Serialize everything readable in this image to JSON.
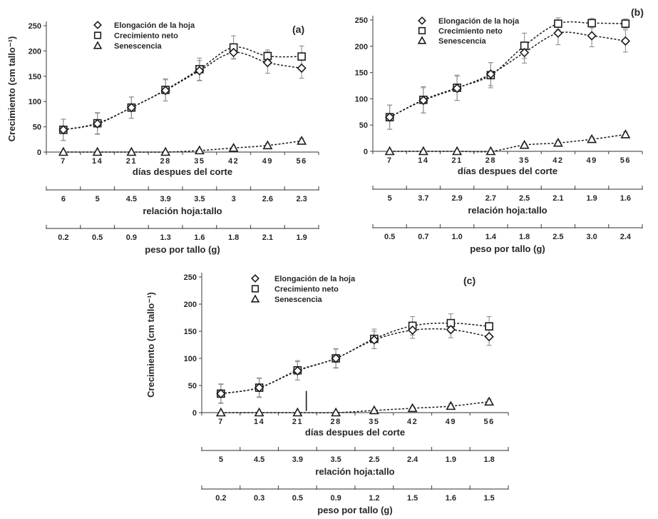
{
  "figure": {
    "background": "#ffffff",
    "ink_color": "#1c1c1c",
    "axis_color": "#595959",
    "error_bar_color": "#8f8f8f",
    "legend": {
      "items": [
        {
          "label": "Elongación de la hoja",
          "marker": "diamond-icon"
        },
        {
          "label": "Crecimiento neto",
          "marker": "square-icon"
        },
        {
          "label": "Senescencia",
          "marker": "triangle-icon"
        }
      ]
    }
  },
  "chart_data": [
    {
      "type": "scatter",
      "panel_label": "(a)",
      "title": "",
      "ylabel": "Crecimiento (cm tallo⁻¹)",
      "show_ylabel": true,
      "xlabel": "días despues del corte",
      "ylim": [
        0,
        250
      ],
      "yticks": [
        0,
        50,
        100,
        150,
        200,
        250
      ],
      "grid": false,
      "legend_position": "top-inside-left",
      "x": [
        7,
        14,
        21,
        28,
        35,
        42,
        49,
        56
      ],
      "series": [
        {
          "name": "Elongación de la hoja",
          "marker": "diamond",
          "values": [
            44,
            56,
            88,
            122,
            161,
            197,
            177,
            166
          ],
          "errors": [
            21,
            21,
            21,
            21,
            20,
            12,
            21,
            20
          ]
        },
        {
          "name": "Crecimiento neto",
          "marker": "square",
          "values": [
            44,
            57,
            88,
            123,
            164,
            207,
            190,
            189
          ],
          "errors": [
            21,
            21,
            21,
            22,
            22,
            23,
            12,
            21
          ]
        },
        {
          "name": "Senescencia",
          "marker": "triangle",
          "values": [
            0,
            0,
            0,
            0,
            3,
            8,
            13,
            22
          ],
          "errors": [
            2,
            2,
            2,
            2,
            3,
            3,
            4,
            5
          ]
        }
      ],
      "sub_axes": [
        {
          "title": "relación hoja:tallo",
          "values": [
            "6",
            "5",
            "4.5",
            "3.9",
            "3.5",
            "3",
            "2.6",
            "2.3"
          ]
        },
        {
          "title": "peso por tallo (g)",
          "values": [
            "0.2",
            "0.5",
            "0.9",
            "1.3",
            "1.6",
            "1.8",
            "2.1",
            "1.9"
          ]
        }
      ]
    },
    {
      "type": "scatter",
      "panel_label": "(b)",
      "title": "",
      "ylabel": "Crecimiento (cm tallo⁻¹)",
      "show_ylabel": false,
      "xlabel": "días despues del corte",
      "ylim": [
        0,
        250
      ],
      "yticks": [
        0,
        50,
        100,
        150,
        200,
        250
      ],
      "grid": false,
      "legend_position": "top-inside-left",
      "x": [
        7,
        14,
        21,
        28,
        35,
        42,
        49,
        56
      ],
      "series": [
        {
          "name": "Elongación de la hoja",
          "marker": "diamond",
          "values": [
            65,
            97,
            120,
            147,
            188,
            225,
            220,
            210
          ],
          "errors": [
            23,
            24,
            23,
            22,
            20,
            22,
            21,
            21
          ]
        },
        {
          "name": "Crecimiento neto",
          "marker": "square",
          "values": [
            65,
            98,
            121,
            145,
            201,
            243,
            244,
            243
          ],
          "errors": [
            23,
            25,
            24,
            24,
            24,
            11,
            9,
            9
          ]
        },
        {
          "name": "Senescencia",
          "marker": "triangle",
          "values": [
            0,
            0,
            0,
            0,
            12,
            16,
            23,
            32
          ],
          "errors": [
            2,
            2,
            2,
            2,
            3,
            4,
            4,
            5
          ]
        }
      ],
      "sub_axes": [
        {
          "title": "relación hoja:tallo",
          "values": [
            "5",
            "3.7",
            "2.9",
            "2.7",
            "2.5",
            "2.1",
            "1.9",
            "1.6"
          ]
        },
        {
          "title": "peso por tallo (g)",
          "values": [
            "0.5",
            "0.7",
            "1.0",
            "1.4",
            "1.8",
            "2.5",
            "3.0",
            "2.4"
          ]
        }
      ]
    },
    {
      "type": "scatter",
      "panel_label": "(c)",
      "title": "",
      "ylabel": "Crecimiento (cm tallo⁻¹)",
      "show_ylabel": true,
      "xlabel": "días despues del corte",
      "ylim": [
        0,
        250
      ],
      "yticks": [
        0,
        50,
        100,
        150,
        200,
        250
      ],
      "grid": false,
      "legend_position": "top-inside-left",
      "x": [
        7,
        14,
        21,
        28,
        35,
        42,
        49,
        56
      ],
      "artifact_line": {
        "day": 22.6,
        "from_value": 3,
        "to_value": 40
      },
      "series": [
        {
          "name": "Elongación de la hoja",
          "marker": "diamond",
          "values": [
            35,
            46,
            77,
            100,
            134,
            152,
            153,
            140
          ],
          "errors": [
            17,
            17,
            17,
            17,
            16,
            15,
            15,
            16
          ]
        },
        {
          "name": "Crecimiento neto",
          "marker": "square",
          "values": [
            35,
            46,
            78,
            100,
            136,
            160,
            165,
            159
          ],
          "errors": [
            18,
            18,
            18,
            18,
            18,
            17,
            17,
            18
          ]
        },
        {
          "name": "Senescencia",
          "marker": "triangle",
          "values": [
            0,
            0,
            0,
            0,
            4,
            8,
            12,
            20
          ],
          "errors": [
            2,
            2,
            2,
            2,
            2,
            3,
            4,
            5
          ]
        }
      ],
      "sub_axes": [
        {
          "title": "relación hoja:tallo",
          "values": [
            "5",
            "4.5",
            "3.9",
            "3.5",
            "2.5",
            "2.4",
            "1.9",
            "1.8"
          ]
        },
        {
          "title": "peso por tallo (g)",
          "values": [
            "0.2",
            "0.3",
            "0.5",
            "0.9",
            "1.2",
            "1.5",
            "1.6",
            "1.5"
          ]
        }
      ]
    }
  ]
}
